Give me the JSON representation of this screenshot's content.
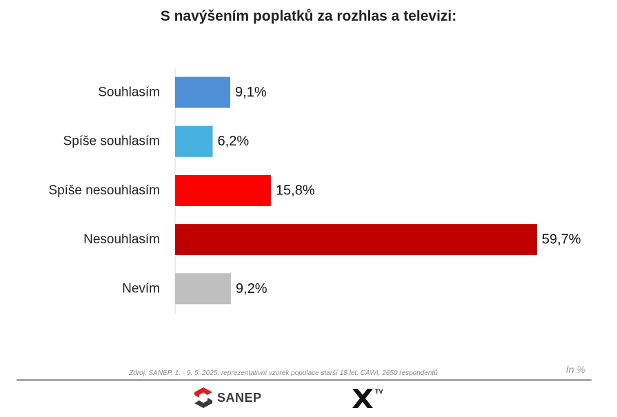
{
  "title": "S navýšením poplatků za rozhlas a televizi:",
  "chart_data": {
    "type": "bar",
    "orientation": "horizontal",
    "title": "S navýšením poplatků za rozhlas a televizi:",
    "categories": [
      "Souhlasím",
      "Spíše souhlasím",
      "Spíše nesouhlasím",
      "Nesouhlasím",
      "Nevím"
    ],
    "values": [
      9.1,
      6.2,
      15.8,
      59.7,
      9.2
    ],
    "value_labels": [
      "9,1%",
      "6,2%",
      "15,8%",
      "59,7%",
      "9,2%"
    ],
    "colors": [
      "#4e8fd6",
      "#46b0e0",
      "#ff0000",
      "#c00000",
      "#bfbfbf"
    ],
    "xlim": [
      0,
      59.7
    ],
    "grid": false,
    "legend": "none"
  },
  "footer": {
    "source": "Zdroj: SANEP, 1. - 9. 5. 2025, reprezentativní vzorek populace starší 18 let, CAWI, 2650 respondentů",
    "unit": "In %",
    "logo_sanep_text": "SANEP",
    "logo_xtv_text": "TV"
  }
}
